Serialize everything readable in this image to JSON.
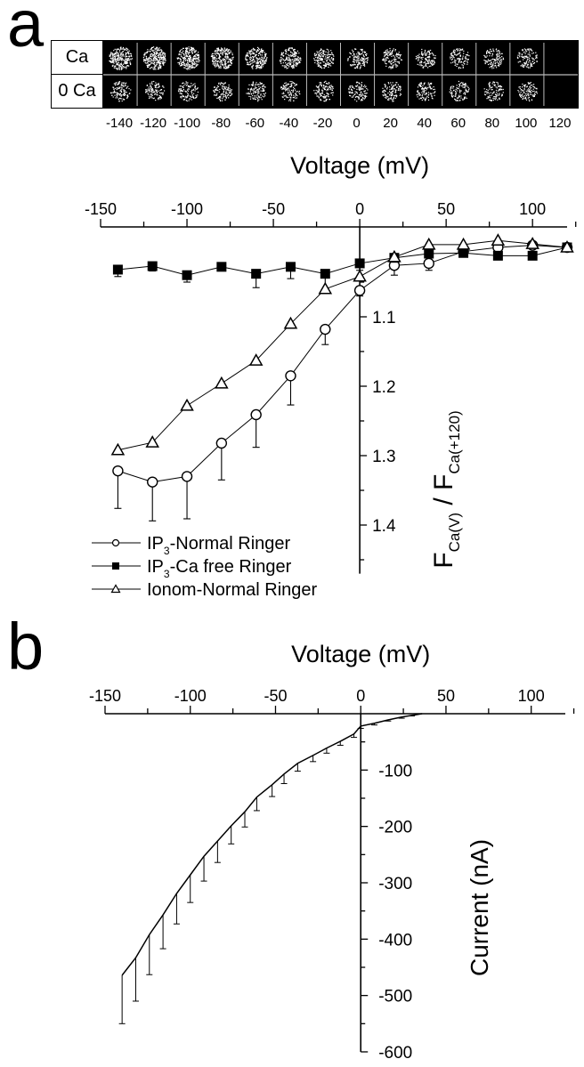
{
  "figure": {
    "panel_a_label": "a",
    "panel_b_label": "b"
  },
  "image_strip": {
    "row_labels": [
      "Ca",
      "0 Ca"
    ],
    "voltages": [
      "-140",
      "-120",
      "-100",
      "-80",
      "-60",
      "-40",
      "-20",
      "0",
      "20",
      "40",
      "60",
      "80",
      "100",
      "120"
    ],
    "ca_intensity": [
      1.0,
      1.0,
      0.95,
      0.88,
      0.78,
      0.68,
      0.6,
      0.52,
      0.48,
      0.46,
      0.44,
      0.45,
      0.45,
      0.0
    ],
    "zero_ca_intensity": [
      0.45,
      0.42,
      0.43,
      0.42,
      0.43,
      0.42,
      0.45,
      0.43,
      0.43,
      0.43,
      0.42,
      0.42,
      0.42,
      0.0
    ]
  },
  "chart_data": [
    {
      "type": "line",
      "panel": "a",
      "title": "",
      "xlabel": "Voltage (mV)",
      "ylabel": "F_Ca(V) / F_Ca(+120)",
      "ylabel_parts": {
        "f1": "F",
        "sub1": "Ca(V)",
        "slash": " / ",
        "f2": "F",
        "sub2": "Ca(+120)"
      },
      "xlim": [
        -150,
        120
      ],
      "ylim": [
        0.99,
        1.47
      ],
      "y_inverted": true,
      "x_axis_position": "top",
      "y_axis_at_x": 0,
      "x_ticks": [
        -150,
        -100,
        -50,
        0,
        50,
        100
      ],
      "x_tick_labels": [
        "-150",
        "-100",
        "-50",
        "0",
        "50",
        "100"
      ],
      "y_ticks": [
        1.1,
        1.2,
        1.3,
        1.4
      ],
      "y_tick_labels": [
        "1.1",
        "1.2",
        "1.3",
        "1.4"
      ],
      "x": [
        -140,
        -120,
        -100,
        -80,
        -60,
        -40,
        -20,
        0,
        20,
        40,
        60,
        80,
        100,
        120
      ],
      "series": [
        {
          "name": "IP3-Normal Ringer",
          "legend_prefix": "IP",
          "legend_sub": "3",
          "legend_suffix": "-Normal Ringer",
          "marker": "circle-open",
          "values": [
            1.322,
            1.338,
            1.33,
            1.282,
            1.241,
            1.185,
            1.118,
            1.062,
            1.026,
            1.023,
            1.006,
            1.0,
            0.997,
            1.0
          ],
          "error": [
            0.054,
            0.056,
            0.061,
            0.053,
            0.047,
            0.042,
            0.022,
            0.008,
            0.014,
            0.01,
            0.008,
            0.0,
            0.0,
            0.0
          ]
        },
        {
          "name": "IP3-Ca free Ringer",
          "legend_prefix": "IP",
          "legend_sub": "3",
          "legend_suffix": "-Ca free Ringer",
          "marker": "square-filled",
          "values": [
            1.032,
            1.027,
            1.04,
            1.028,
            1.038,
            1.028,
            1.038,
            1.023,
            1.015,
            1.009,
            1.008,
            1.012,
            1.012,
            1.0
          ],
          "error": [
            0.01,
            0.007,
            0.01,
            0.003,
            0.02,
            0.017,
            0.024,
            0.01,
            0.0,
            0.0,
            0.006,
            0.0,
            0.0,
            0.0
          ]
        },
        {
          "name": "Ionom-Normal Ringer",
          "legend_prefix": "Ionom-Normal Ringer",
          "legend_sub": "",
          "legend_suffix": "",
          "marker": "triangle-open",
          "values": [
            1.292,
            1.281,
            1.228,
            1.196,
            1.163,
            1.11,
            1.06,
            1.042,
            1.014,
            0.996,
            0.996,
            0.99,
            0.995,
            1.0
          ],
          "error": [
            0,
            0,
            0,
            0,
            0,
            0,
            0,
            0,
            0,
            0,
            0,
            0,
            0,
            0
          ]
        }
      ],
      "legend_position": "bottom-left"
    },
    {
      "type": "line",
      "panel": "b",
      "title": "",
      "xlabel": "Voltage (mV)",
      "ylabel": "Current (nA)",
      "xlim": [
        -150,
        120
      ],
      "ylim": [
        -600,
        0
      ],
      "x_axis_position": "top",
      "y_axis_at_x": 0,
      "x_ticks": [
        -150,
        -100,
        -50,
        0,
        50,
        100
      ],
      "x_tick_labels": [
        "-150",
        "-100",
        "-50",
        "0",
        "50",
        "100"
      ],
      "y_ticks": [
        -100,
        -200,
        -300,
        -400,
        -500,
        -600
      ],
      "y_tick_labels": [
        "-100",
        "-200",
        "-300",
        "-400",
        "-500",
        "-600"
      ],
      "series": [
        {
          "name": "Current",
          "x": [
            -140,
            -132,
            -124,
            -116,
            -108,
            -100,
            -92,
            -84,
            -76,
            -68,
            -61,
            -52,
            -45,
            -37,
            -28,
            -20,
            -12,
            -4,
            0,
            8,
            16,
            24,
            30,
            36
          ],
          "values": [
            -464,
            -433,
            -392,
            -357,
            -319,
            -286,
            -253,
            -226,
            -199,
            -174,
            -148,
            -126,
            -107,
            -88,
            -74,
            -61,
            -49,
            -36,
            -22,
            -17,
            -11,
            -6,
            -3,
            0
          ],
          "error": [
            -86,
            -77,
            -71,
            -60,
            -54,
            -49,
            -44,
            -38,
            -32,
            -27,
            -24,
            -21,
            -17,
            -14,
            -11,
            -9,
            -7,
            -6,
            -4,
            -3,
            -2,
            -2,
            -1,
            0
          ]
        }
      ]
    }
  ]
}
